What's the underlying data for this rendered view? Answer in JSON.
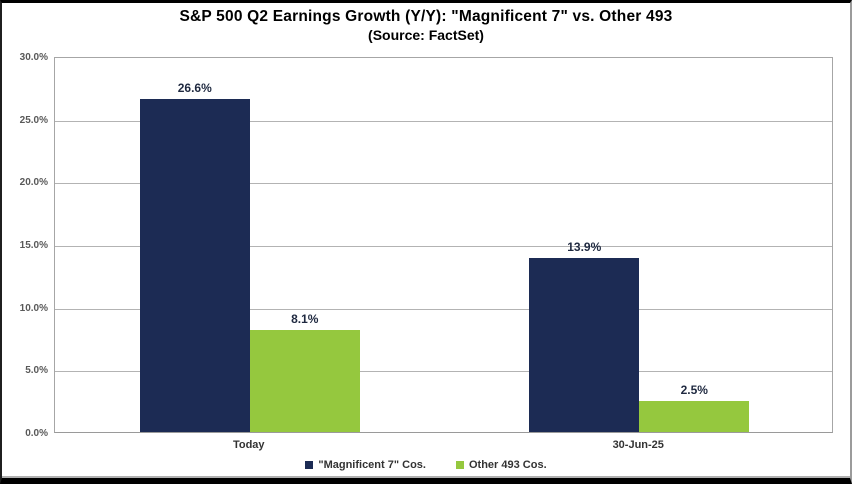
{
  "chart_data": {
    "type": "bar",
    "title": "S&P 500 Q2 Earnings Growth (Y/Y): \"Magnificent 7\" vs. Other 493",
    "subtitle": "(Source: FactSet)",
    "categories": [
      "Today",
      "30-Jun-25"
    ],
    "series": [
      {
        "name": "\"Magnificent 7\" Cos.",
        "color": "#1c2b54",
        "values": [
          26.6,
          13.9
        ],
        "data_labels": [
          "26.6%",
          "13.9%"
        ]
      },
      {
        "name": "Other 493 Cos.",
        "color": "#95c83e",
        "values": [
          8.1,
          2.5
        ],
        "data_labels": [
          "8.1%",
          "2.5%"
        ]
      }
    ],
    "ylim": [
      0,
      30
    ],
    "yticks": [
      {
        "value": 30,
        "label": "30.0%"
      },
      {
        "value": 25,
        "label": "25.0%"
      },
      {
        "value": 20,
        "label": "20.0%"
      },
      {
        "value": 15,
        "label": "15.0%"
      },
      {
        "value": 10,
        "label": "10.0%"
      },
      {
        "value": 5,
        "label": "5.0%"
      },
      {
        "value": 0,
        "label": "0.0%"
      }
    ],
    "grid": true,
    "legend_position": "bottom"
  },
  "colors": {
    "gridline": "#b3b3b3",
    "plot_border": "#a6a6a6",
    "axis_line": "#9a9a9a",
    "ytick_label": "#595959",
    "xtick_label": "#333333",
    "data_label": "#1f2940",
    "legend_label": "#333333",
    "frame_bottom_line": "#b0b0b0"
  }
}
